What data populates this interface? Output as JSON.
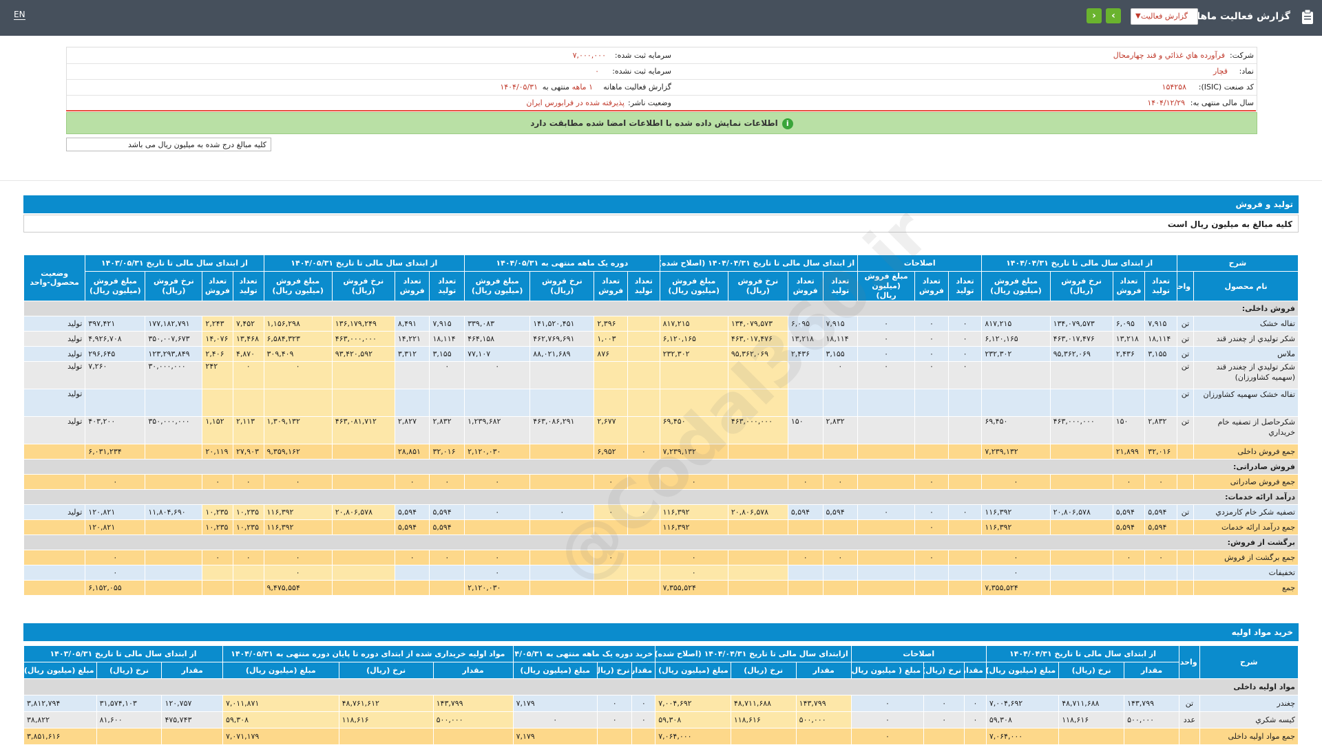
{
  "topbar": {
    "title": "گزارش فعالیت ماهانه",
    "dropdown_value": "گزارش فعالیت",
    "lang": "EN",
    "next_label": "›",
    "prev_label": "‹"
  },
  "company_info": {
    "company_label": "شرکت:",
    "company_value": "فرآورده هاي غذائي و قند چهارمحال",
    "symbol_label": "نماد:",
    "symbol_value": "قچار",
    "isic_label": "کد صنعت (ISIC):",
    "isic_value": "۱۵۴۲۵۸",
    "fiscal_label": "سال مالی منتهی به:",
    "fiscal_value": "۱۴۰۴/۱۲/۲۹",
    "capital_label": "سرمایه ثبت شده:",
    "capital_value": "۷,۰۰۰,۰۰۰",
    "unreg_capital_label": "سرمایه ثبت نشده:",
    "unreg_capital_value": "۰",
    "report_label": "گزارش فعالیت ماهانه",
    "report_value": "۱ ماهه",
    "report_suffix": "منتهی به",
    "report_date": "۱۴۰۴/۰۵/۳۱",
    "status_label": "وضعیت ناشر:",
    "status_value": "پذیرفته شده در فرابورس ایران"
  },
  "notice": "اطلاعات نمایش داده شده با اطلاعات امضا شده مطابقت دارد",
  "millions_note": "کلیه مبالغ درج شده به میلیون ریال می باشد",
  "watermark": "@Codal360.ir",
  "sales_section": {
    "title": "تولید و فروش",
    "subtitle": "کلیه مبالغ به میلیون ریال است",
    "group_headers": {
      "desc": "شرح",
      "g1": "از ابتدای سال مالی تا تاریخ ۱۴۰۴/۰۴/۳۱",
      "g2": "اصلاحات",
      "g3": "از ابتدای سال مالی تا تاریخ ۱۴۰۴/۰۴/۳۱ (اصلاح شده)",
      "g4": "دوره یک ماهه منتهی به ۱۴۰۴/۰۵/۳۱",
      "g5": "از ابتدای سال مالی تا تاریخ ۱۴۰۴/۰۵/۳۱",
      "g6": "از ابتدای سال مالی تا تاریخ ۱۴۰۳/۰۵/۳۱",
      "status": "وضعیت محصول-واحد"
    },
    "col_headers": {
      "name": "نام محصول",
      "unit": "واحد",
      "prod": "تعداد تولید",
      "sales_qty": "تعداد فروش",
      "rate": "نرخ فروش (ریال)",
      "amount": "مبلغ فروش (میلیون ریال)"
    },
    "rows": [
      {
        "type": "sec",
        "name": "فروش داخلی:"
      },
      {
        "type": "blue",
        "name": "تفاله خشک",
        "unit": "تن",
        "c": [
          "۷,۹۱۵",
          "۶,۰۹۵",
          "۱۳۴,۰۷۹,۵۷۳",
          "۸۱۷,۲۱۵",
          "۰",
          "۰",
          "۰",
          "۷,۹۱۵",
          "۶,۰۹۵",
          "۱۳۴,۰۷۹,۵۷۳",
          "۸۱۷,۲۱۵",
          "",
          "۲,۳۹۶",
          "۱۴۱,۵۲۰,۴۵۱",
          "۳۳۹,۰۸۳",
          "۷,۹۱۵",
          "۸,۴۹۱",
          "۱۳۶,۱۷۹,۲۴۹",
          "۱,۱۵۶,۲۹۸",
          "۷,۴۵۲",
          "۲,۲۴۳",
          "۱۷۷,۱۸۲,۷۹۱",
          "۳۹۷,۴۲۱"
        ],
        "status": "تولید"
      },
      {
        "type": "gray",
        "name": "شکر توليدي از چغندر قند",
        "unit": "تن",
        "c": [
          "۱۸,۱۱۴",
          "۱۳,۲۱۸",
          "۴۶۳,۰۱۷,۴۷۶",
          "۶,۱۲۰,۱۶۵",
          "۰",
          "۰",
          "۰",
          "۱۸,۱۱۴",
          "۱۳,۲۱۸",
          "۴۶۳,۰۱۷,۴۷۶",
          "۶,۱۲۰,۱۶۵",
          "",
          "۱,۰۰۳",
          "۴۶۲,۷۶۹,۶۹۱",
          "۴۶۴,۱۵۸",
          "۱۸,۱۱۴",
          "۱۴,۲۲۱",
          "۴۶۳,۰۰۰,۰۰۰",
          "۶,۵۸۴,۳۲۳",
          "۱۳,۴۶۸",
          "۱۴,۰۷۶",
          "۳۵۰,۰۰۷,۶۷۳",
          "۴,۹۲۶,۷۰۸"
        ],
        "status": "تولید"
      },
      {
        "type": "blue",
        "name": "ملاس",
        "unit": "تن",
        "c": [
          "۳,۱۵۵",
          "۲,۴۳۶",
          "۹۵,۳۶۲,۰۶۹",
          "۲۳۲,۳۰۲",
          "۰",
          "۰",
          "۰",
          "۳,۱۵۵",
          "۲,۴۳۶",
          "۹۵,۳۶۲,۰۶۹",
          "۲۳۲,۳۰۲",
          "",
          "۸۷۶",
          "۸۸,۰۲۱,۶۸۹",
          "۷۷,۱۰۷",
          "۳,۱۵۵",
          "۳,۳۱۲",
          "۹۳,۴۲۰,۵۹۲",
          "۳۰۹,۴۰۹",
          "۴,۸۷۰",
          "۲,۴۰۶",
          "۱۲۳,۲۹۳,۸۴۹",
          "۲۹۶,۶۴۵"
        ],
        "status": "تولید"
      },
      {
        "type": "gray2",
        "name": "شکر توليدي از چغندر قند (سهميه کشاورزان)",
        "unit": "تن",
        "c": [
          "",
          "",
          "",
          "",
          "۰",
          "۰",
          "۰",
          "۰",
          "",
          "",
          "",
          "",
          "",
          "",
          "۰",
          "۰",
          "",
          "",
          "۰",
          "۰",
          "۲۴۲",
          "۳۰,۰۰۰,۰۰۰",
          "۷,۲۶۰"
        ],
        "status": "تولید"
      },
      {
        "type": "blue2",
        "name": "تفاله خشک سهميه کشاورزان",
        "unit": "تن",
        "c": [
          "",
          "",
          "",
          "",
          "",
          "",
          "",
          "",
          "",
          "",
          "",
          "",
          "",
          "",
          "",
          "",
          "",
          "",
          "",
          "",
          "",
          "",
          ""
        ],
        "status": "تولید"
      },
      {
        "type": "gray2",
        "name": "شکرحاصل از تصفیه خام خريداري",
        "unit": "تن",
        "c": [
          "۲,۸۳۲",
          "۱۵۰",
          "۴۶۳,۰۰۰,۰۰۰",
          "۶۹,۴۵۰",
          "",
          "",
          "",
          "۲,۸۳۲",
          "۱۵۰",
          "۴۶۳,۰۰۰,۰۰۰",
          "۶۹,۴۵۰",
          "",
          "۲,۶۷۷",
          "۴۶۳,۰۸۶,۲۹۱",
          "۱,۲۳۹,۶۸۲",
          "۲,۸۳۲",
          "۲,۸۲۷",
          "۴۶۳,۰۸۱,۷۱۲",
          "۱,۳۰۹,۱۳۲",
          "۲,۱۱۳",
          "۱,۱۵۲",
          "۳۵۰,۰۰۰,۰۰۰",
          "۴۰۳,۲۰۰"
        ],
        "status": "تولید"
      },
      {
        "type": "sum",
        "name": "جمع فروش داخلی",
        "unit": "",
        "c": [
          "۳۲,۰۱۶",
          "۲۱,۸۹۹",
          "",
          "۷,۲۳۹,۱۳۲",
          "",
          "",
          "",
          "",
          "",
          "",
          "۷,۲۳۹,۱۳۲",
          "۰",
          "۶,۹۵۲",
          "",
          "۲,۱۲۰,۰۳۰",
          "۳۲,۰۱۶",
          "۲۸,۸۵۱",
          "",
          "۹,۳۵۹,۱۶۲",
          "۲۷,۹۰۳",
          "۲۰,۱۱۹",
          "",
          "۶,۰۳۱,۲۳۴"
        ],
        "status": ""
      },
      {
        "type": "sec",
        "name": "فروش صادراتی:"
      },
      {
        "type": "sum",
        "name": "جمع فروش صادراتی",
        "unit": "",
        "c": [
          "۰",
          "۰",
          "",
          "۰",
          "",
          "۰",
          "",
          "۰",
          "۰",
          "",
          "۰",
          "",
          "۰",
          "",
          "۰",
          "۰",
          "۰",
          "",
          "۰",
          "۰",
          "۰",
          "",
          "۰"
        ],
        "status": ""
      },
      {
        "type": "sec",
        "name": "درآمد ارائه خدمات:"
      },
      {
        "type": "blue",
        "name": "تصفيه شکر خام کارمزدي",
        "unit": "تن",
        "c": [
          "۵,۵۹۴",
          "۵,۵۹۴",
          "۲۰,۸۰۶,۵۷۸",
          "۱۱۶,۳۹۲",
          "۰",
          "۰",
          "۰",
          "۵,۵۹۴",
          "۵,۵۹۴",
          "۲۰,۸۰۶,۵۷۸",
          "۱۱۶,۳۹۲",
          "۰",
          "۰",
          "۰",
          "۰",
          "۵,۵۹۴",
          "۵,۵۹۴",
          "۲۰,۸۰۶,۵۷۸",
          "۱۱۶,۳۹۲",
          "۱۰,۲۳۵",
          "۱۰,۲۳۵",
          "۱۱,۸۰۴,۶۹۰",
          "۱۲۰,۸۲۱"
        ],
        "status": "تولید"
      },
      {
        "type": "sum",
        "name": "جمع درآمد ارائه خدمات",
        "unit": "",
        "c": [
          "۵,۵۹۴",
          "۵,۵۹۴",
          "",
          "۱۱۶,۳۹۲",
          "",
          "۰",
          "",
          "",
          "",
          "",
          "۱۱۶,۳۹۲",
          "",
          "",
          "",
          "",
          "۵,۵۹۴",
          "۵,۵۹۴",
          "",
          "۱۱۶,۳۹۲",
          "۱۰,۲۳۵",
          "۱۰,۲۳۵",
          "",
          "۱۲۰,۸۲۱"
        ],
        "status": ""
      },
      {
        "type": "sec",
        "name": "برگشت از فروش:"
      },
      {
        "type": "sum",
        "name": "جمع برگشت از فروش",
        "unit": "",
        "c": [
          "۰",
          "۰",
          "",
          "۰",
          "",
          "۰",
          "",
          "۰",
          "۰",
          "",
          "۰",
          "",
          "۰",
          "",
          "۰",
          "۰",
          "۰",
          "",
          "۰",
          "۰",
          "۰",
          "",
          "۰"
        ],
        "status": ""
      },
      {
        "type": "blue",
        "name": "تخفیفات",
        "unit": "",
        "c": [
          "",
          "",
          "",
          "۰",
          "",
          "",
          "",
          "",
          "",
          "",
          "۰",
          "",
          "",
          "",
          "۰",
          "",
          "",
          "",
          "۰",
          "",
          "",
          "",
          "۰"
        ],
        "status": ""
      },
      {
        "type": "sum",
        "name": "جمع",
        "unit": "",
        "c": [
          "",
          "",
          "",
          "۷,۳۵۵,۵۲۴",
          "",
          "",
          "",
          "",
          "",
          "",
          "۷,۳۵۵,۵۲۴",
          "",
          "",
          "",
          "۲,۱۲۰,۰۳۰",
          "",
          "",
          "",
          "۹,۴۷۵,۵۵۴",
          "",
          "",
          "",
          "۶,۱۵۲,۰۵۵"
        ],
        "status": ""
      }
    ]
  },
  "materials_section": {
    "title": "خرید مواد اولیه",
    "group_headers": {
      "desc": "شرح",
      "unit": "واحد",
      "g1": "از ابتدای سال مالی تا تاریخ ۱۴۰۴/۰۴/۳۱",
      "g2": "اصلاحات",
      "g3": "ازابتدای سال مالی تا تاریخ ۱۴۰۴/۰۴/۳۱ (اصلاح شده)",
      "g4": "خرید دوره یک ماهه منتهی به ۱۴۰۴/۰۵/۳۱",
      "g5": "مواد اولیه خریداری شده از ابتدای دوره تا پایان دوره منتهی به ۱۴۰۴/۰۵/۳۱",
      "g6": "از ابتدای سال مالی تا تاریخ ۱۴۰۳/۰۵/۳۱"
    },
    "col_headers": {
      "qty": "مقدار",
      "rate": "نرخ (ریال)",
      "amount": "مبلغ (میلیون ریال)",
      "amount_adj": "مبلغ ( میلیون ریال)"
    },
    "rows": [
      {
        "type": "sec",
        "name": "مواد اولیه داخلی"
      },
      {
        "type": "blue",
        "name": "چغندر",
        "unit": "تن",
        "c": [
          "۱۴۳,۷۹۹",
          "۴۸,۷۱۱,۶۸۸",
          "۷,۰۰۴,۶۹۲",
          "۰",
          "۰",
          "۰",
          "۱۴۳,۷۹۹",
          "۴۸,۷۱۱,۶۸۸",
          "۷,۰۰۴,۶۹۲",
          "۰",
          "۰",
          "۷,۱۷۹",
          "۱۴۳,۷۹۹",
          "۴۸,۷۶۱,۶۱۲",
          "۷,۰۱۱,۸۷۱",
          "۱۲۰,۷۵۷",
          "۳۱,۵۷۴,۱۰۳",
          "۳,۸۱۲,۷۹۴"
        ]
      },
      {
        "type": "gray",
        "name": "کيسه شکري",
        "unit": "عدد",
        "c": [
          "۵۰۰,۰۰۰",
          "۱۱۸,۶۱۶",
          "۵۹,۳۰۸",
          "۰",
          "۰",
          "۰",
          "۵۰۰,۰۰۰",
          "۱۱۸,۶۱۶",
          "۵۹,۳۰۸",
          "۰",
          "۰",
          "۰",
          "۵۰۰,۰۰۰",
          "۱۱۸,۶۱۶",
          "۵۹,۳۰۸",
          "۴۷۵,۷۴۳",
          "۸۱,۶۰۰",
          "۳۸,۸۲۲"
        ]
      },
      {
        "type": "sum",
        "name": "جمع مواد اولیه داخلی",
        "unit": "",
        "c": [
          "",
          "",
          "۷,۰۶۴,۰۰۰",
          "",
          "",
          "۰",
          "",
          "",
          "۷,۰۶۴,۰۰۰",
          "",
          "",
          "۷,۱۷۹",
          "",
          "",
          "۷,۰۷۱,۱۷۹",
          "",
          "",
          "۳,۸۵۱,۶۱۶"
        ]
      }
    ]
  }
}
